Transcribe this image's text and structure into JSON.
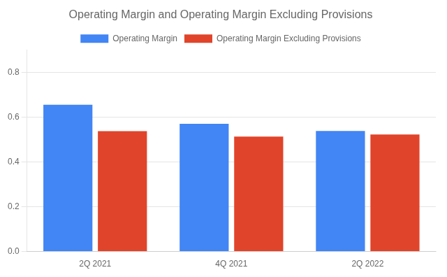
{
  "chart_data": {
    "type": "bar",
    "title": "Operating Margin and Operating Margin Excluding Provisions",
    "categories": [
      "2Q 2021",
      "4Q 2021",
      "2Q 2022"
    ],
    "series": [
      {
        "name": "Operating Margin",
        "color": "#4285F4",
        "values": [
          0.655,
          0.57,
          0.538
        ]
      },
      {
        "name": "Operating Margin Excluding Provisions",
        "color": "#E0442A",
        "values": [
          0.537,
          0.513,
          0.522
        ]
      }
    ],
    "ylim": [
      0.0,
      0.9
    ],
    "yticks": [
      {
        "value": 0.0,
        "label": "0.0"
      },
      0.2,
      0.4,
      0.6,
      0.8
    ],
    "grid": true,
    "legend": "top"
  }
}
